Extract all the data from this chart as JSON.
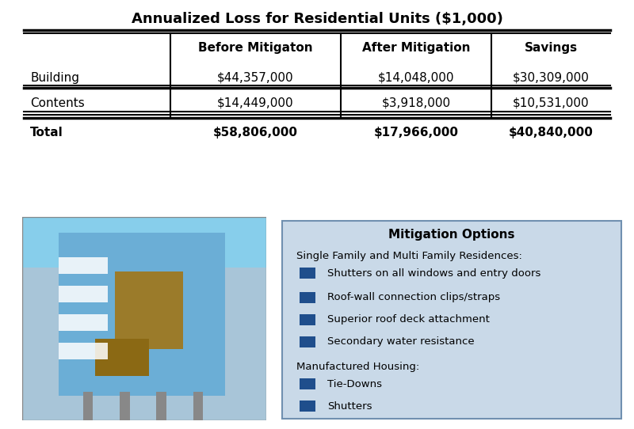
{
  "title": "Annualized Loss for Residential Units ($1,000)",
  "table_headers": [
    "",
    "Before Mitigaton",
    "After Mitigation",
    "Savings"
  ],
  "table_rows": [
    [
      "Building",
      "$44,357,000",
      "$14,048,000",
      "$30,309,000"
    ],
    [
      "Contents",
      "$14,449,000",
      "$3,918,000",
      "$10,531,000"
    ],
    [
      "Total",
      "$58,806,000",
      "$17,966,000",
      "$40,840,000"
    ]
  ],
  "mitigation_title": "Mitigation Options",
  "mitigation_section1_header": "Single Family and Multi Family Residences:",
  "mitigation_section1_items": [
    "Shutters on all windows and entry doors",
    "Roof-wall connection clips/straps",
    "Superior roof deck attachment",
    "Secondary water resistance"
  ],
  "mitigation_section2_header": "Manufactured Housing:",
  "mitigation_section2_items": [
    "Tie-Downs",
    "Shutters"
  ],
  "bullet_color": "#1F4E8C",
  "box_bg_color": "#C9D9E8",
  "box_border_color": "#7090B0",
  "background_color": "#ffffff",
  "title_fontsize": 13,
  "header_fontsize": 11,
  "data_fontsize": 11,
  "mitigation_title_fontsize": 11,
  "mitigation_body_fontsize": 9.5
}
